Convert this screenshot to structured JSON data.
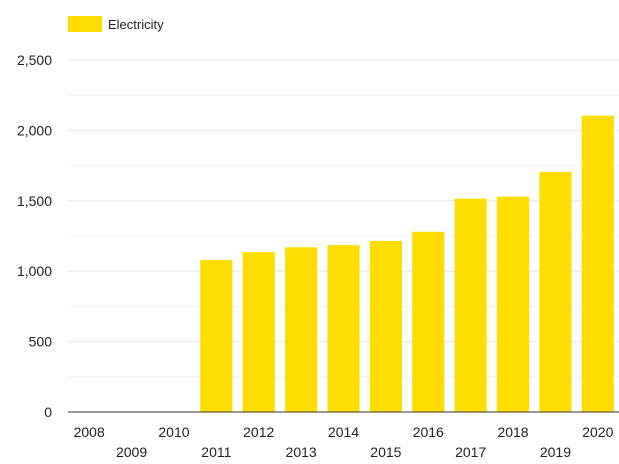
{
  "chart_data": {
    "type": "bar",
    "categories": [
      "2008",
      "2009",
      "2010",
      "2011",
      "2012",
      "2013",
      "2014",
      "2015",
      "2016",
      "2017",
      "2018",
      "2019",
      "2020"
    ],
    "series": [
      {
        "name": "Electricity",
        "values": [
          0,
          0,
          0,
          1080,
          1135,
          1170,
          1185,
          1215,
          1280,
          1515,
          1530,
          1705,
          2105
        ]
      }
    ],
    "ylim": [
      0,
      2500
    ],
    "yticks": [
      0,
      500,
      1000,
      1500,
      2000,
      2500
    ],
    "ytick_labels": [
      "0",
      "500",
      "1,000",
      "1,500",
      "2,000",
      "2,500"
    ],
    "legend_position": "top-left",
    "grid": true,
    "bar_color": "#FFDD00",
    "title": "",
    "xlabel": "",
    "ylabel": ""
  }
}
